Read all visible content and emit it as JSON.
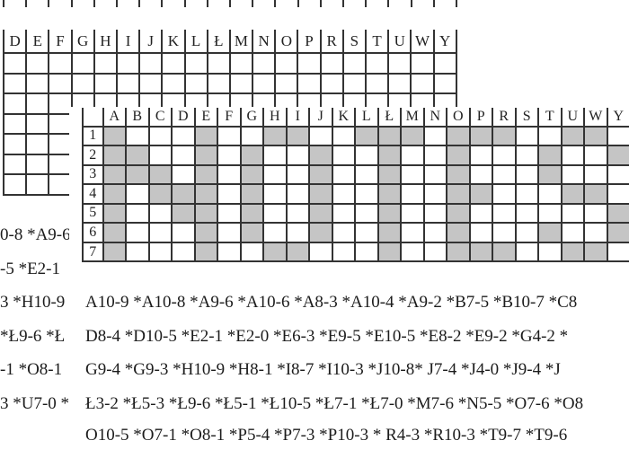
{
  "page": {
    "background_color": "#ffffff",
    "grid_line_color": "#333333",
    "shaded_cell_color": "#c5c5c5",
    "text_color": "#1c1c1c"
  },
  "grid_back": {
    "description": "partially visible puzzle grid on page behind",
    "columns": [
      "D",
      "E",
      "F",
      "G",
      "H",
      "I",
      "J",
      "K",
      "L",
      "Ł",
      "M",
      "N",
      "O",
      "P",
      "R",
      "S",
      "T",
      "U",
      "W",
      "Y"
    ],
    "row_count": 7
  },
  "grid_front": {
    "description": "puzzle grid with shaded cells spelling NOTES",
    "columns": [
      "A",
      "B",
      "C",
      "D",
      "E",
      "F",
      "G",
      "H",
      "I",
      "J",
      "K",
      "L",
      "Ł",
      "M",
      "N",
      "O",
      "P",
      "R",
      "S",
      "T",
      "U",
      "W",
      "Y"
    ],
    "row_labels": [
      "1",
      "2",
      "3",
      "4",
      "5",
      "6",
      "7"
    ],
    "shading": [
      "X...X..XX..XXX.XXX..XX.",
      "XX..X.X..X..X..X...X..X",
      "XXX.X.X..X..X..X...X...",
      "X.XXX.X..X..X..XX...XX.",
      "X..XX.X..X..X..X......X",
      "X...X.X..X..X..X...X..X",
      "X...X..XX...X..XXX..XX."
    ]
  },
  "left_text": {
    "lines": [
      "0-8 *A9-6",
      "-5 *E2-1",
      "3 *H10-9",
      "*Ł9-6 *Ł",
      "-1 *O8-1",
      "3 *U7-0 *"
    ]
  },
  "clue_list": {
    "lines": [
      "A10-9 *A10-8 *A9-6 *A10-6 *A8-3 *A10-4 *A9-2 *B7-5 *B10-7 *C8",
      "D8-4 *D10-5 *E2-1 *E2-0 *E6-3 *E9-5 *E10-5 *E8-2 *E9-2 *G4-2 *",
      "G9-4 *G9-3 *H10-9 *H8-1 *I8-7 *I10-3 *J10-8* J7-4 *J4-0 *J9-4 *J",
      "Ł3-2 *Ł5-3 *Ł9-6 *Ł5-1 *Ł10-5 *Ł7-1 *Ł7-0 *M7-6 *N5-5 *O7-6 *O8",
      "O10-5 *O7-1 *O8-1 *P5-4 *P7-3 *P10-3 * R4-3 *R10-3 *T9-7 *T9-6"
    ]
  }
}
